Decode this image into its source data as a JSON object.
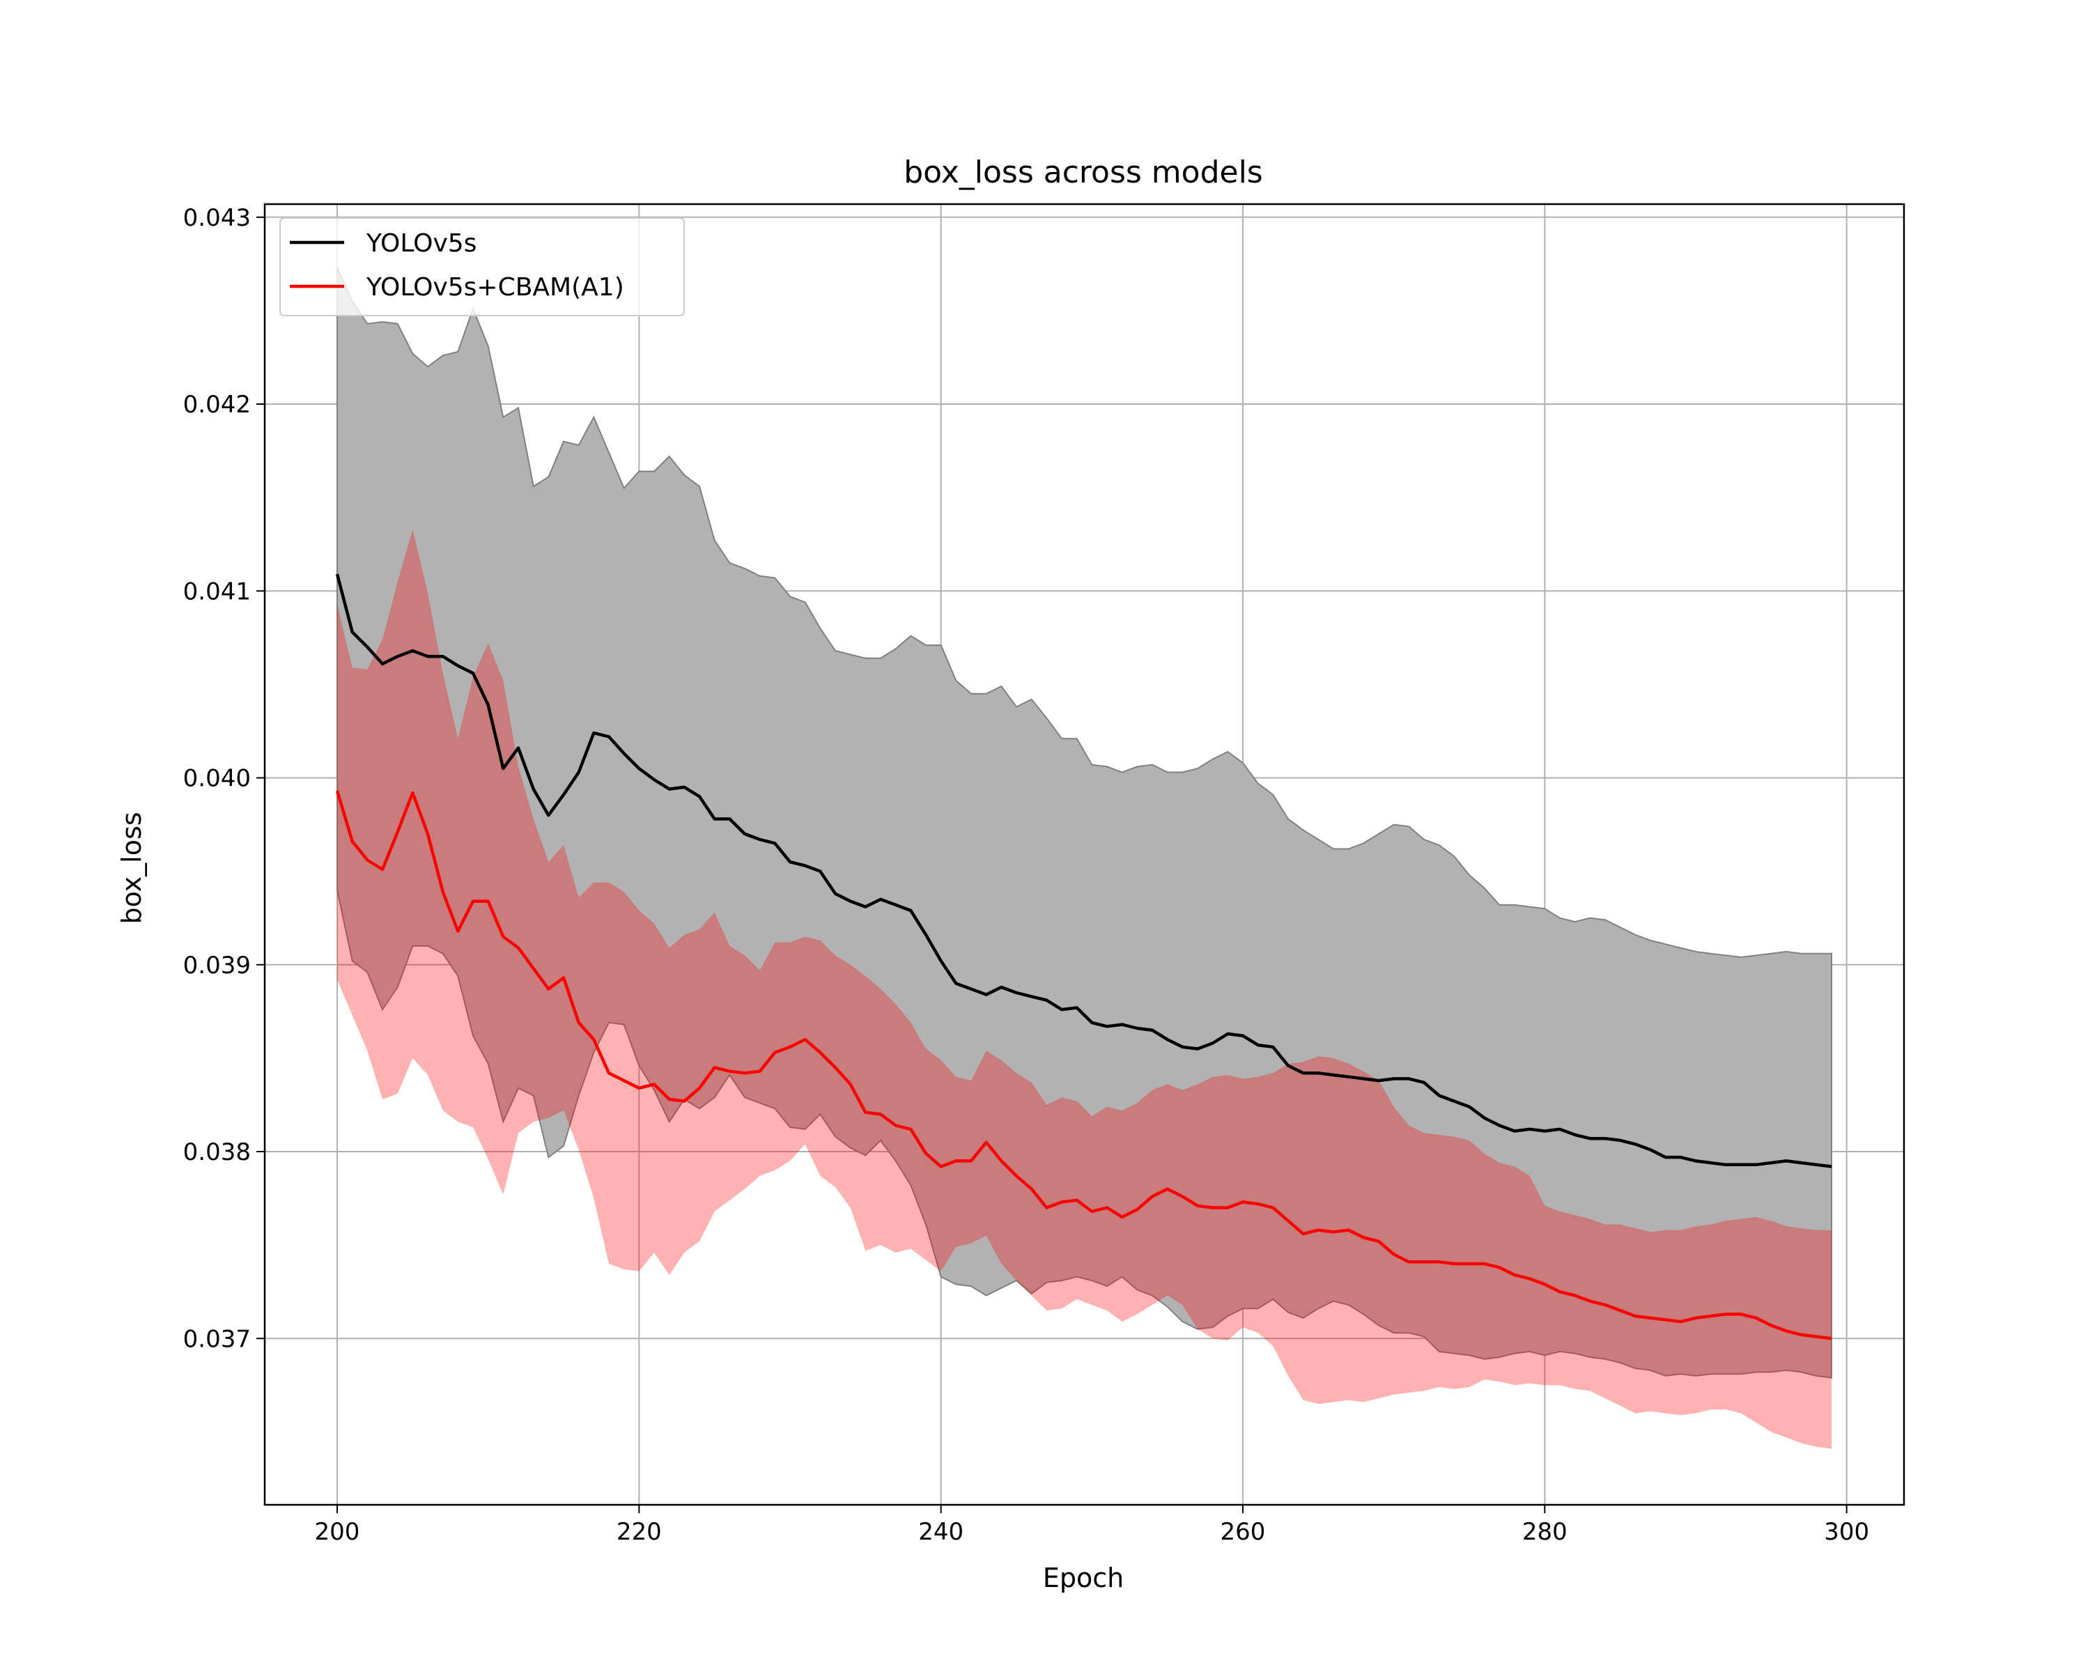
{
  "chart_data": {
    "type": "line",
    "title": "box_loss across models",
    "xlabel": "Epoch",
    "ylabel": "box_loss",
    "xlim": [
      195.2,
      303.8
    ],
    "ylim": [
      0.03611,
      0.04307
    ],
    "xticks": [
      200,
      220,
      240,
      260,
      280,
      300
    ],
    "yticks": [
      0.037,
      0.038,
      0.039,
      0.04,
      0.041,
      0.042,
      0.043
    ],
    "ytick_labels": [
      "0.037",
      "0.038",
      "0.039",
      "0.040",
      "0.041",
      "0.042",
      "0.043"
    ],
    "grid": true,
    "legend_position": "upper-left",
    "x_start": 200,
    "series": [
      {
        "name": "YOLOv5s",
        "line_color": "#000000",
        "band_fill": "#b2b2b2",
        "band_edge": "#808080",
        "mean": [
          0.04109,
          0.04078,
          0.0407,
          0.04061,
          0.04065,
          0.04068,
          0.04065,
          0.04065,
          0.0406,
          0.04056,
          0.04039,
          0.04005,
          0.04016,
          0.03994,
          0.0398,
          0.03991,
          0.04003,
          0.04024,
          0.04022,
          0.04013,
          0.04005,
          0.03999,
          0.03994,
          0.03995,
          0.0399,
          0.03978,
          0.03978,
          0.0397,
          0.03967,
          0.03965,
          0.03955,
          0.03953,
          0.0395,
          0.03938,
          0.03934,
          0.03931,
          0.03935,
          0.03932,
          0.03929,
          0.03916,
          0.03902,
          0.0389,
          0.03887,
          0.03884,
          0.03888,
          0.03885,
          0.03883,
          0.03881,
          0.03876,
          0.03877,
          0.03869,
          0.03867,
          0.03868,
          0.03866,
          0.03865,
          0.0386,
          0.03856,
          0.03855,
          0.03858,
          0.03863,
          0.03862,
          0.03857,
          0.03856,
          0.03846,
          0.03842,
          0.03842,
          0.03841,
          0.0384,
          0.03839,
          0.03838,
          0.03839,
          0.03839,
          0.03837,
          0.0383,
          0.03827,
          0.03824,
          0.03818,
          0.03814,
          0.03811,
          0.03812,
          0.03811,
          0.03812,
          0.03809,
          0.03807,
          0.03807,
          0.03806,
          0.03804,
          0.03801,
          0.03797,
          0.03797,
          0.03795,
          0.03794,
          0.03793,
          0.03793,
          0.03793,
          0.03794,
          0.03795,
          0.03794,
          0.03793,
          0.03792
        ],
        "upper": [
          0.04273,
          0.04255,
          0.04243,
          0.04244,
          0.04243,
          0.04227,
          0.0422,
          0.04226,
          0.04228,
          0.04251,
          0.04231,
          0.04193,
          0.04198,
          0.04156,
          0.04161,
          0.0418,
          0.04178,
          0.04193,
          0.04174,
          0.04155,
          0.04164,
          0.04164,
          0.04172,
          0.04162,
          0.04156,
          0.04127,
          0.04115,
          0.04112,
          0.04108,
          0.04107,
          0.04097,
          0.04094,
          0.0408,
          0.04068,
          0.04066,
          0.04064,
          0.04064,
          0.04069,
          0.04076,
          0.04071,
          0.04071,
          0.04052,
          0.04045,
          0.04045,
          0.04049,
          0.04038,
          0.04042,
          0.04032,
          0.04021,
          0.04021,
          0.04007,
          0.04006,
          0.04003,
          0.04006,
          0.04007,
          0.04003,
          0.04003,
          0.04005,
          0.0401,
          0.04014,
          0.04008,
          0.03997,
          0.03991,
          0.03978,
          0.03972,
          0.03967,
          0.03962,
          0.03962,
          0.03965,
          0.0397,
          0.03975,
          0.03974,
          0.03967,
          0.03964,
          0.03958,
          0.03948,
          0.03941,
          0.03932,
          0.03932,
          0.03931,
          0.0393,
          0.03925,
          0.03923,
          0.03925,
          0.03924,
          0.0392,
          0.03916,
          0.03913,
          0.03911,
          0.03909,
          0.03907,
          0.03906,
          0.03905,
          0.03904,
          0.03905,
          0.03906,
          0.03907,
          0.03906,
          0.03906,
          0.03906
        ],
        "lower": [
          0.0394,
          0.03902,
          0.03896,
          0.03876,
          0.03888,
          0.0391,
          0.0391,
          0.03906,
          0.03894,
          0.03862,
          0.03847,
          0.03816,
          0.03834,
          0.0383,
          0.03797,
          0.03803,
          0.0383,
          0.03853,
          0.03869,
          0.03868,
          0.03846,
          0.03833,
          0.03816,
          0.03828,
          0.03823,
          0.03829,
          0.03841,
          0.03829,
          0.03826,
          0.03823,
          0.03813,
          0.03812,
          0.0382,
          0.03808,
          0.03802,
          0.03798,
          0.03806,
          0.03795,
          0.03782,
          0.03761,
          0.03733,
          0.03729,
          0.03728,
          0.03723,
          0.03727,
          0.03731,
          0.03724,
          0.0373,
          0.03731,
          0.03733,
          0.03731,
          0.03728,
          0.03733,
          0.03726,
          0.03723,
          0.03717,
          0.03709,
          0.03705,
          0.03706,
          0.03712,
          0.03716,
          0.03716,
          0.03721,
          0.03714,
          0.03711,
          0.03716,
          0.0372,
          0.03718,
          0.03713,
          0.03707,
          0.03703,
          0.03703,
          0.03701,
          0.03693,
          0.03692,
          0.03691,
          0.03689,
          0.0369,
          0.03692,
          0.03693,
          0.03691,
          0.03693,
          0.03692,
          0.0369,
          0.03689,
          0.03687,
          0.03684,
          0.03683,
          0.0368,
          0.03681,
          0.0368,
          0.03681,
          0.03681,
          0.03681,
          0.03682,
          0.03682,
          0.03683,
          0.03682,
          0.0368,
          0.03679
        ]
      },
      {
        "name": "YOLOv5s+CBAM(A1)",
        "line_color": "#ff0000",
        "band_fill": "#ff0000",
        "band_opacity": 0.3,
        "mean": [
          0.03993,
          0.03966,
          0.03956,
          0.03951,
          0.03971,
          0.03992,
          0.0397,
          0.03939,
          0.03918,
          0.03934,
          0.03934,
          0.03915,
          0.03909,
          0.03898,
          0.03887,
          0.03893,
          0.03869,
          0.0386,
          0.03842,
          0.03838,
          0.03834,
          0.03836,
          0.03828,
          0.03827,
          0.03834,
          0.03845,
          0.03843,
          0.03842,
          0.03843,
          0.03853,
          0.03856,
          0.0386,
          0.03853,
          0.03845,
          0.03836,
          0.03821,
          0.0382,
          0.03814,
          0.03812,
          0.03799,
          0.03792,
          0.03795,
          0.03795,
          0.03805,
          0.03795,
          0.03787,
          0.0378,
          0.0377,
          0.03773,
          0.03774,
          0.03768,
          0.0377,
          0.03765,
          0.03769,
          0.03776,
          0.0378,
          0.03776,
          0.03771,
          0.0377,
          0.0377,
          0.03773,
          0.03772,
          0.0377,
          0.03763,
          0.03756,
          0.03758,
          0.03757,
          0.03758,
          0.03754,
          0.03752,
          0.03745,
          0.03741,
          0.03741,
          0.03741,
          0.0374,
          0.0374,
          0.0374,
          0.03738,
          0.03734,
          0.03732,
          0.03729,
          0.03725,
          0.03723,
          0.0372,
          0.03718,
          0.03715,
          0.03712,
          0.03711,
          0.0371,
          0.03709,
          0.03711,
          0.03712,
          0.03713,
          0.03713,
          0.03711,
          0.03707,
          0.03704,
          0.03702,
          0.03701,
          0.037
        ],
        "upper": [
          0.04093,
          0.04059,
          0.04058,
          0.04074,
          0.04105,
          0.04133,
          0.04099,
          0.04056,
          0.04021,
          0.04054,
          0.04072,
          0.04052,
          0.04006,
          0.03978,
          0.03955,
          0.03964,
          0.03936,
          0.03944,
          0.03944,
          0.03939,
          0.03929,
          0.03922,
          0.03909,
          0.03916,
          0.03919,
          0.03928,
          0.0391,
          0.03905,
          0.03897,
          0.03912,
          0.03912,
          0.03915,
          0.03913,
          0.03905,
          0.039,
          0.03894,
          0.03887,
          0.03879,
          0.03869,
          0.03855,
          0.03849,
          0.0384,
          0.03838,
          0.03854,
          0.03849,
          0.03842,
          0.03837,
          0.03825,
          0.03829,
          0.03827,
          0.03819,
          0.03824,
          0.03822,
          0.03826,
          0.03833,
          0.03836,
          0.03833,
          0.03836,
          0.0384,
          0.03841,
          0.03839,
          0.0384,
          0.03842,
          0.03847,
          0.03848,
          0.03851,
          0.0385,
          0.03847,
          0.03843,
          0.03838,
          0.03824,
          0.03814,
          0.0381,
          0.03809,
          0.03808,
          0.03806,
          0.03799,
          0.03794,
          0.03792,
          0.03787,
          0.03771,
          0.03768,
          0.03766,
          0.03764,
          0.03761,
          0.03761,
          0.03759,
          0.03757,
          0.03758,
          0.03758,
          0.0376,
          0.03761,
          0.03763,
          0.03764,
          0.03765,
          0.03763,
          0.0376,
          0.03759,
          0.03758,
          0.03758
        ],
        "lower": [
          0.03892,
          0.03873,
          0.03854,
          0.03828,
          0.03831,
          0.0385,
          0.03841,
          0.03822,
          0.03816,
          0.03813,
          0.03796,
          0.03777,
          0.0381,
          0.03816,
          0.03818,
          0.03822,
          0.03801,
          0.03775,
          0.0374,
          0.03737,
          0.03736,
          0.03746,
          0.03734,
          0.03746,
          0.03752,
          0.03768,
          0.03774,
          0.0378,
          0.03787,
          0.0379,
          0.03795,
          0.03804,
          0.03787,
          0.03781,
          0.0377,
          0.03747,
          0.0375,
          0.03746,
          0.03748,
          0.03742,
          0.03736,
          0.03749,
          0.03751,
          0.03755,
          0.0374,
          0.03731,
          0.03723,
          0.03715,
          0.03716,
          0.03721,
          0.03718,
          0.03715,
          0.03709,
          0.03713,
          0.03718,
          0.03723,
          0.03718,
          0.03705,
          0.037,
          0.03699,
          0.03706,
          0.03703,
          0.03696,
          0.0368,
          0.03667,
          0.03665,
          0.03666,
          0.03667,
          0.03666,
          0.03668,
          0.0367,
          0.03671,
          0.03672,
          0.03674,
          0.03673,
          0.03674,
          0.03678,
          0.03677,
          0.03675,
          0.03676,
          0.03675,
          0.03675,
          0.03673,
          0.03672,
          0.03668,
          0.03664,
          0.0366,
          0.03661,
          0.0366,
          0.03659,
          0.0366,
          0.03662,
          0.03662,
          0.0366,
          0.03655,
          0.0365,
          0.03647,
          0.03644,
          0.03642,
          0.03641
        ]
      }
    ]
  }
}
